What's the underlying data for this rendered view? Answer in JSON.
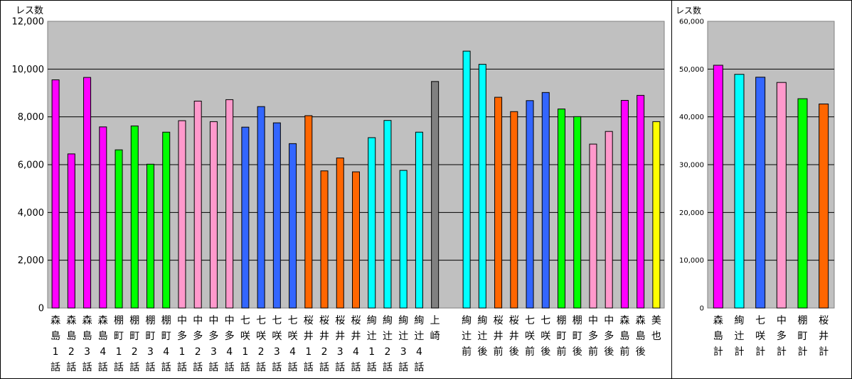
{
  "chart_data": [
    {
      "type": "bar",
      "ylabel": "レス数",
      "ylim": [
        0,
        12000
      ],
      "yticks": [
        "0",
        "2,000",
        "4,000",
        "6,000",
        "8,000",
        "10,000",
        "12,000"
      ],
      "grid": true,
      "plot_background": "#C0C0C0",
      "categories": [
        "森島1話",
        "森島2話",
        "森島3話",
        "森島4話",
        "棚町1話",
        "棚町2話",
        "棚町3話",
        "棚町4話",
        "中多1話",
        "中多2話",
        "中多3話",
        "中多4話",
        "七咲1話",
        "七咲2話",
        "七咲3話",
        "七咲4話",
        "桜井1話",
        "桜井2話",
        "桜井3話",
        "桜井4話",
        "絢辻1話",
        "絢辻2話",
        "絢辻3話",
        "絢辻4話",
        "上崎",
        "",
        "絢辻前",
        "絢辻後",
        "桜井前",
        "桜井後",
        "七咲前",
        "七咲後",
        "棚町前",
        "棚町後",
        "中多前",
        "中多後",
        "森島前",
        "森島後",
        "美也"
      ],
      "category_lines": [
        [
          "森",
          "島",
          "1",
          "話"
        ],
        [
          "森",
          "島",
          "2",
          "話"
        ],
        [
          "森",
          "島",
          "3",
          "話"
        ],
        [
          "森",
          "島",
          "4",
          "話"
        ],
        [
          "棚",
          "町",
          "1",
          "話"
        ],
        [
          "棚",
          "町",
          "2",
          "話"
        ],
        [
          "棚",
          "町",
          "3",
          "話"
        ],
        [
          "棚",
          "町",
          "4",
          "話"
        ],
        [
          "中",
          "多",
          "1",
          "話"
        ],
        [
          "中",
          "多",
          "2",
          "話"
        ],
        [
          "中",
          "多",
          "3",
          "話"
        ],
        [
          "中",
          "多",
          "4",
          "話"
        ],
        [
          "七",
          "咲",
          "1",
          "話"
        ],
        [
          "七",
          "咲",
          "2",
          "話"
        ],
        [
          "七",
          "咲",
          "3",
          "話"
        ],
        [
          "七",
          "咲",
          "4",
          "話"
        ],
        [
          "桜",
          "井",
          "1",
          "話"
        ],
        [
          "桜",
          "井",
          "2",
          "話"
        ],
        [
          "桜",
          "井",
          "3",
          "話"
        ],
        [
          "桜",
          "井",
          "4",
          "話"
        ],
        [
          "絢",
          "辻",
          "1",
          "話"
        ],
        [
          "絢",
          "辻",
          "2",
          "話"
        ],
        [
          "絢",
          "辻",
          "3",
          "話"
        ],
        [
          "絢",
          "辻",
          "4",
          "話"
        ],
        [
          "上",
          "崎"
        ],
        [],
        [
          "絢",
          "辻",
          "前"
        ],
        [
          "絢",
          "辻",
          "後"
        ],
        [
          "桜",
          "井",
          "前"
        ],
        [
          "桜",
          "井",
          "後"
        ],
        [
          "七",
          "咲",
          "前"
        ],
        [
          "七",
          "咲",
          "後"
        ],
        [
          "棚",
          "町",
          "前"
        ],
        [
          "棚",
          "町",
          "後"
        ],
        [
          "中",
          "多",
          "前"
        ],
        [
          "中",
          "多",
          "後"
        ],
        [
          "森",
          "島",
          "前"
        ],
        [
          "森",
          "島",
          "後"
        ],
        [
          "美",
          "也"
        ]
      ],
      "values": [
        9550,
        6450,
        9650,
        7580,
        6620,
        7620,
        6020,
        7360,
        7840,
        8660,
        7800,
        8720,
        7570,
        8430,
        7750,
        6880,
        8050,
        5740,
        6280,
        5700,
        7130,
        7850,
        5760,
        7360,
        9480,
        null,
        10750,
        10200,
        8820,
        8220,
        8680,
        9020,
        8330,
        8010,
        6860,
        7390,
        8690,
        8900,
        7800
      ],
      "colors": [
        "#FF00FF",
        "#FF00FF",
        "#FF00FF",
        "#FF00FF",
        "#00FF00",
        "#00FF00",
        "#00FF00",
        "#00FF00",
        "#FF99CC",
        "#FF99CC",
        "#FF99CC",
        "#FF99CC",
        "#3366FF",
        "#3366FF",
        "#3366FF",
        "#3366FF",
        "#FF6600",
        "#FF6600",
        "#FF6600",
        "#FF6600",
        "#00FFFF",
        "#00FFFF",
        "#00FFFF",
        "#00FFFF",
        "#808080",
        "",
        "#00FFFF",
        "#00FFFF",
        "#FF6600",
        "#FF6600",
        "#3366FF",
        "#3366FF",
        "#00FF00",
        "#00FF00",
        "#FF99CC",
        "#FF99CC",
        "#FF00FF",
        "#FF00FF",
        "#FFFF00"
      ]
    },
    {
      "type": "bar",
      "ylabel": "レス数",
      "ylim": [
        0,
        60000
      ],
      "yticks": [
        "0",
        "10,000",
        "20,000",
        "30,000",
        "40,000",
        "50,000",
        "60,000"
      ],
      "grid": true,
      "plot_background": "#C0C0C0",
      "categories": [
        "森島計",
        "絢辻計",
        "七咲計",
        "中多計",
        "棚町計",
        "桜井計"
      ],
      "category_lines": [
        [
          "森",
          "島",
          "計"
        ],
        [
          "絢",
          "辻",
          "計"
        ],
        [
          "七",
          "咲",
          "計"
        ],
        [
          "中",
          "多",
          "計"
        ],
        [
          "棚",
          "町",
          "計"
        ],
        [
          "桜",
          "井",
          "計"
        ]
      ],
      "values": [
        50800,
        48900,
        48300,
        47200,
        43800,
        42700
      ],
      "colors": [
        "#FF00FF",
        "#00FFFF",
        "#3366FF",
        "#FF99CC",
        "#00FF00",
        "#FF6600"
      ]
    }
  ]
}
